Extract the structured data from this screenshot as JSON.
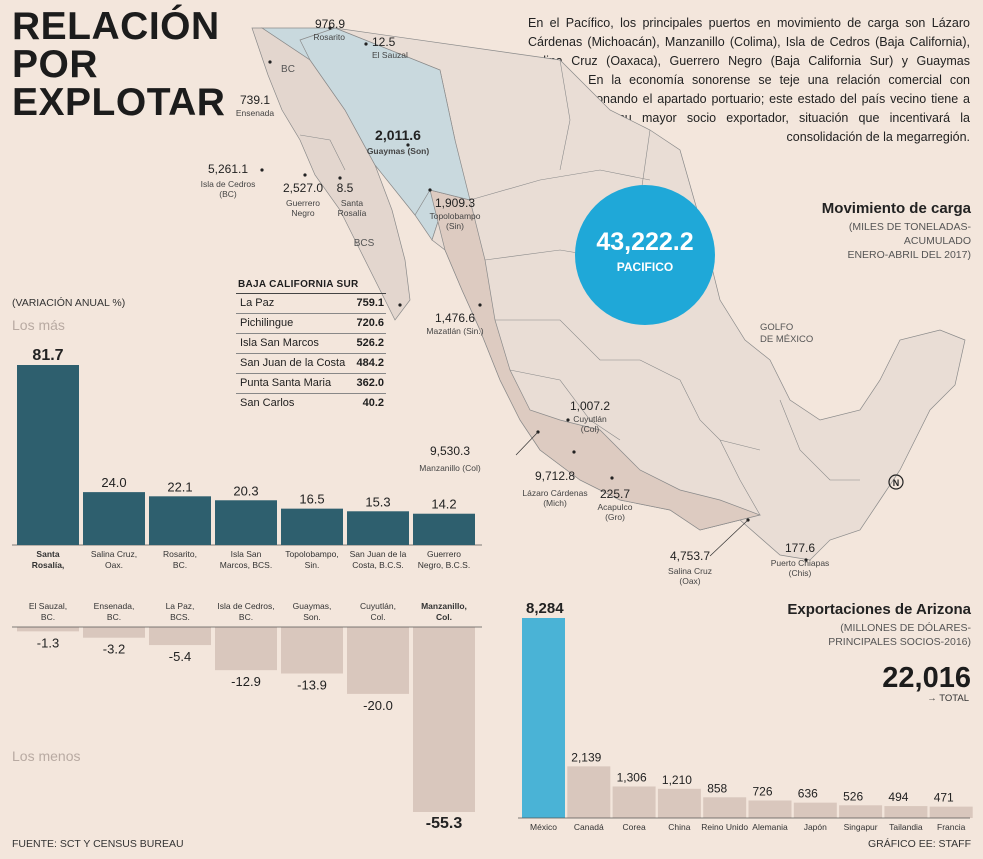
{
  "headline": "RELACIÓN\nPOR\nEXPLOTAR",
  "intro_text": "En el Pacífico, los principales puertos en movimiento de carga son Lázaro Cárdenas (Michoacán), Manzanillo (Colima), Isla de Cedros (Baja California), Salina Cruz (Oaxaca), Guerrero Negro (Baja California Sur) y Guaymas (Sonora). En la economía sonorense se teje una relación comercial con Arizona, detonando el apartado portuario; este estado del país vecino tiene a México como su mayor socio exportador, situación que incentivará la consolidación de la megarregión.",
  "cargo": {
    "title": "Movimiento de carga",
    "subtitle_lines": [
      "(MILES DE TONELADAS-",
      "ACUMULADO",
      "ENERO-ABRIL DEL 2017)"
    ],
    "pacific_total": "43,222.2",
    "pacific_label": "PACIFICO"
  },
  "map": {
    "gulf_label_lines": [
      "GOLFO",
      "DE MÉXICO"
    ],
    "region_labels": [
      "BC",
      "BCS"
    ],
    "ports": [
      {
        "value": "976.9",
        "name": "Rosarito",
        "bold": false
      },
      {
        "value": "12.5",
        "name": "El Sauzal",
        "bold": false
      },
      {
        "value": "739.1",
        "name": "Ensenada",
        "bold": false
      },
      {
        "value": "2,011.6",
        "name": "Guaymas (Son)",
        "bold": true
      },
      {
        "value": "5,261.1",
        "name": "Isla de Cedros\n(BC)",
        "bold": false
      },
      {
        "value": "2,527.0",
        "name": "Guerrero\nNegro",
        "bold": false
      },
      {
        "value": "8.5",
        "name": "Santa\nRosalía",
        "bold": false
      },
      {
        "value": "1,909.3",
        "name": "Topolobampo\n(Sin)",
        "bold": false
      },
      {
        "value": "1,476.6",
        "name": "Mazatlán (Sin.)",
        "bold": false
      },
      {
        "value": "1,007.2",
        "name": "Cuyutlán\n(Col)",
        "bold": false
      },
      {
        "value": "9,530.3",
        "name": "Manzanillo (Col)",
        "bold": false
      },
      {
        "value": "9,712.8",
        "name": "Lázaro Cárdenas\n(Mich)",
        "bold": false
      },
      {
        "value": "225.7",
        "name": "Acapulco\n(Gro)",
        "bold": false
      },
      {
        "value": "4,753.7",
        "name": "Salina Cruz\n(Oax)",
        "bold": false
      },
      {
        "value": "177.6",
        "name": "Puerto Chiapas\n(Chis)",
        "bold": false
      }
    ]
  },
  "bcs_table": {
    "header": "BAJA CALIFORNIA SUR",
    "rows": [
      {
        "name": "La Paz",
        "value": "759.1"
      },
      {
        "name": "Pichilingue",
        "value": "720.6"
      },
      {
        "name": "Isla San Marcos",
        "value": "526.2"
      },
      {
        "name": "San Juan de la Costa",
        "value": "484.2"
      },
      {
        "name": "Punta Santa Maria",
        "value": "362.0"
      },
      {
        "name": "San Carlos",
        "value": "40.2"
      }
    ]
  },
  "variation": {
    "unit_label": "(VARIACIÓN ANUAL %)",
    "top_label": "Los más",
    "bottom_label": "Los menos"
  },
  "arizona": {
    "title": "Exportaciones de Arizona",
    "subtitle_lines": [
      "(MILLONES DE DÓLARES-",
      "PRINCIPALES SOCIOS-2016)"
    ],
    "total": "22,016",
    "total_label": "→ TOTAL"
  },
  "footer": {
    "source": "FUENTE: SCT Y CENSUS BUREAU",
    "credit": "GRÁFICO EE: STAFF"
  },
  "chart_data": [
    {
      "type": "bar",
      "title": "Los más",
      "ylabel": "(VARIACIÓN ANUAL %)",
      "categories": [
        "Santa\nRosalía,",
        "Salina Cruz,\nOax.",
        "Rosarito,\nBC.",
        "Isla San\nMarcos, BCS.",
        "Topolobampo,\nSin.",
        "San Juan de la\nCosta, B.C.S.",
        "Guerrero\nNegro, B.C.S."
      ],
      "values": [
        81.7,
        24.0,
        22.1,
        20.3,
        16.5,
        15.3,
        14.2
      ],
      "value_labels": [
        "81.7",
        "24.0",
        "22.1",
        "20.3",
        "16.5",
        "15.3",
        "14.2"
      ],
      "color": "#2e5f6e"
    },
    {
      "type": "bar",
      "title": "Los menos",
      "ylabel": "(VARIACIÓN ANUAL %)",
      "categories": [
        "El Sauzal,\nBC.",
        "Ensenada,\nBC.",
        "La Paz,\nBCS.",
        "Isla de Cedros,\nBC.",
        "Guaymas,\nSon.",
        "Cuyutlán,\nCol.",
        "Manzanillo,\nCol."
      ],
      "values": [
        -1.3,
        -3.2,
        -5.4,
        -12.9,
        -13.9,
        -20.0,
        -55.3
      ],
      "value_labels": [
        "-1.3",
        "-3.2",
        "-5.4",
        "-12.9",
        "-13.9",
        "-20.0",
        "-55.3"
      ],
      "color": "#d9c7bd"
    },
    {
      "type": "bar",
      "title": "Exportaciones de Arizona",
      "ylabel": "(MILLONES DE DÓLARES-PRINCIPALES SOCIOS-2016)",
      "categories": [
        "México",
        "Canadá",
        "Corea",
        "China",
        "Reino Unido",
        "Alemania",
        "Japón",
        "Singapur",
        "Tailandia",
        "Francia"
      ],
      "values": [
        8284,
        2139,
        1306,
        1210,
        858,
        726,
        636,
        526,
        494,
        471
      ],
      "value_labels": [
        "8,284",
        "2,139",
        "1,306",
        "1,210",
        "858",
        "726",
        "636",
        "526",
        "494",
        "471"
      ],
      "colors": {
        "highlight": "#4ab3d6",
        "default": "#d9c7bd"
      }
    }
  ]
}
